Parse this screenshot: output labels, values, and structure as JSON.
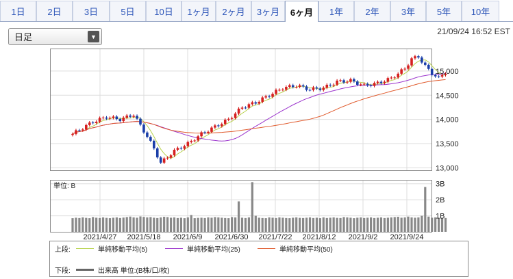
{
  "tabs": [
    "1日",
    "2日",
    "3日",
    "5日",
    "10日",
    "1ヶ月",
    "2ヶ月",
    "3ヶ月",
    "6ヶ月",
    "1年",
    "2年",
    "3年",
    "5年",
    "10年"
  ],
  "active_tab": "6ヶ月",
  "period_select": {
    "value": "日足"
  },
  "timestamp": "21/09/24 16:52 EST",
  "chart_data": [
    {
      "type": "candlestick",
      "title": "",
      "y_ticks": [
        "15,000",
        "14,500",
        "14,000",
        "13,500",
        "13,000"
      ],
      "ylim": [
        12950,
        15450
      ],
      "grid": true,
      "series": [
        {
          "name": "単純移動平均(5)",
          "color": "#b7d24b"
        },
        {
          "name": "単純移動平均(25)",
          "color": "#9b33cc"
        },
        {
          "name": "単純移動平均(50)",
          "color": "#e05a2c"
        }
      ]
    },
    {
      "type": "bar",
      "unit_label": "単位: B",
      "y_ticks": [
        "3B",
        "2B",
        "1B"
      ],
      "ylim": [
        0,
        3.2
      ],
      "x_labels": [
        "2021/4/27",
        "2021/5/18",
        "2021/6/9",
        "2021/6/30",
        "2021/7/22",
        "2021/8/12",
        "2021/9/2",
        "2021/9/24"
      ],
      "values": [
        0.85,
        0.88,
        0.86,
        0.9,
        0.87,
        0.85,
        0.92,
        0.88,
        0.86,
        0.9,
        0.87,
        0.85,
        0.88,
        0.9,
        0.86,
        0.89,
        0.92,
        0.95,
        0.9,
        0.88,
        0.96,
        0.93,
        0.9,
        0.92,
        0.88,
        0.86,
        0.9,
        0.94,
        0.92,
        0.88,
        0.9,
        0.86,
        0.88,
        0.85,
        0.9,
        1.05,
        0.85,
        0.87,
        0.88,
        0.86,
        0.9,
        0.88,
        0.92,
        0.9,
        0.88,
        0.86,
        0.85,
        0.92,
        0.9,
        1.9,
        0.88,
        0.86,
        0.9,
        3.1,
        1.0,
        0.88,
        0.86,
        0.85,
        0.9,
        0.88,
        0.86,
        0.9,
        0.88,
        0.86,
        0.85,
        0.88,
        0.9,
        0.87,
        0.86,
        0.88,
        0.9,
        0.86,
        0.88,
        0.85,
        0.9,
        0.86,
        0.88,
        0.9,
        0.87,
        0.86,
        0.92,
        0.9,
        0.88,
        0.85,
        0.88,
        0.9,
        0.86,
        0.88,
        0.9,
        0.86,
        0.88,
        0.9,
        0.86,
        0.88,
        0.9,
        0.92,
        0.94,
        0.88,
        0.9,
        0.95,
        0.9,
        0.88,
        0.9,
        1.0,
        2.8,
        0.95,
        0.88,
        0.9,
        0.86,
        0.85,
        0.86
      ]
    }
  ],
  "legend": {
    "upper_label": "上段:",
    "lower_label": "下段:",
    "items": [
      {
        "label": "単純移動平均(5)",
        "color": "#b7d24b"
      },
      {
        "label": "単純移動平均(25)",
        "color": "#9b33cc"
      },
      {
        "label": "単純移動平均(50)",
        "color": "#e05a2c"
      }
    ],
    "volume": {
      "label": "出来高 単位:(B株/口/枚)",
      "color": "#666666"
    }
  }
}
